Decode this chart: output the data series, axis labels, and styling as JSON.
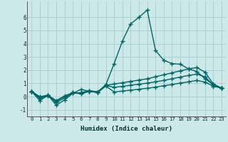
{
  "xlabel": "Humidex (Indice chaleur)",
  "background_color": "#cce8e8",
  "grid_color": "#aacccc",
  "line_color": "#006666",
  "xlim": [
    -0.5,
    23.5
  ],
  "ylim": [
    -1.5,
    7.2
  ],
  "xticks": [
    0,
    1,
    2,
    3,
    4,
    5,
    6,
    7,
    8,
    9,
    10,
    11,
    12,
    13,
    14,
    15,
    16,
    17,
    18,
    19,
    20,
    21,
    22,
    23
  ],
  "yticks": [
    -1,
    0,
    1,
    2,
    3,
    4,
    5,
    6
  ],
  "series": [
    [
      0.4,
      -0.3,
      0.1,
      -0.65,
      -0.25,
      0.25,
      0.55,
      0.4,
      0.35,
      0.9,
      2.5,
      4.2,
      5.5,
      6.0,
      6.55,
      3.5,
      2.75,
      2.5,
      2.45,
      2.1,
      1.9,
      1.35,
      0.9,
      0.65
    ],
    [
      0.4,
      -0.15,
      0.05,
      -0.45,
      -0.1,
      0.25,
      0.3,
      0.45,
      0.35,
      0.85,
      0.95,
      1.05,
      1.15,
      1.25,
      1.35,
      1.5,
      1.65,
      1.8,
      1.95,
      2.1,
      2.2,
      1.85,
      0.95,
      0.65
    ],
    [
      0.4,
      -0.05,
      0.1,
      -0.35,
      0.0,
      0.3,
      0.25,
      0.45,
      0.35,
      0.85,
      0.7,
      0.78,
      0.86,
      0.94,
      1.02,
      1.12,
      1.22,
      1.35,
      1.48,
      1.6,
      1.7,
      1.5,
      0.88,
      0.65
    ],
    [
      0.4,
      0.0,
      0.1,
      -0.3,
      0.05,
      0.3,
      0.2,
      0.4,
      0.3,
      0.8,
      0.35,
      0.42,
      0.49,
      0.56,
      0.63,
      0.72,
      0.82,
      0.92,
      1.02,
      1.12,
      1.22,
      1.1,
      0.78,
      0.65
    ]
  ],
  "marker": "+",
  "markersize": 4,
  "linewidth": 1.0
}
